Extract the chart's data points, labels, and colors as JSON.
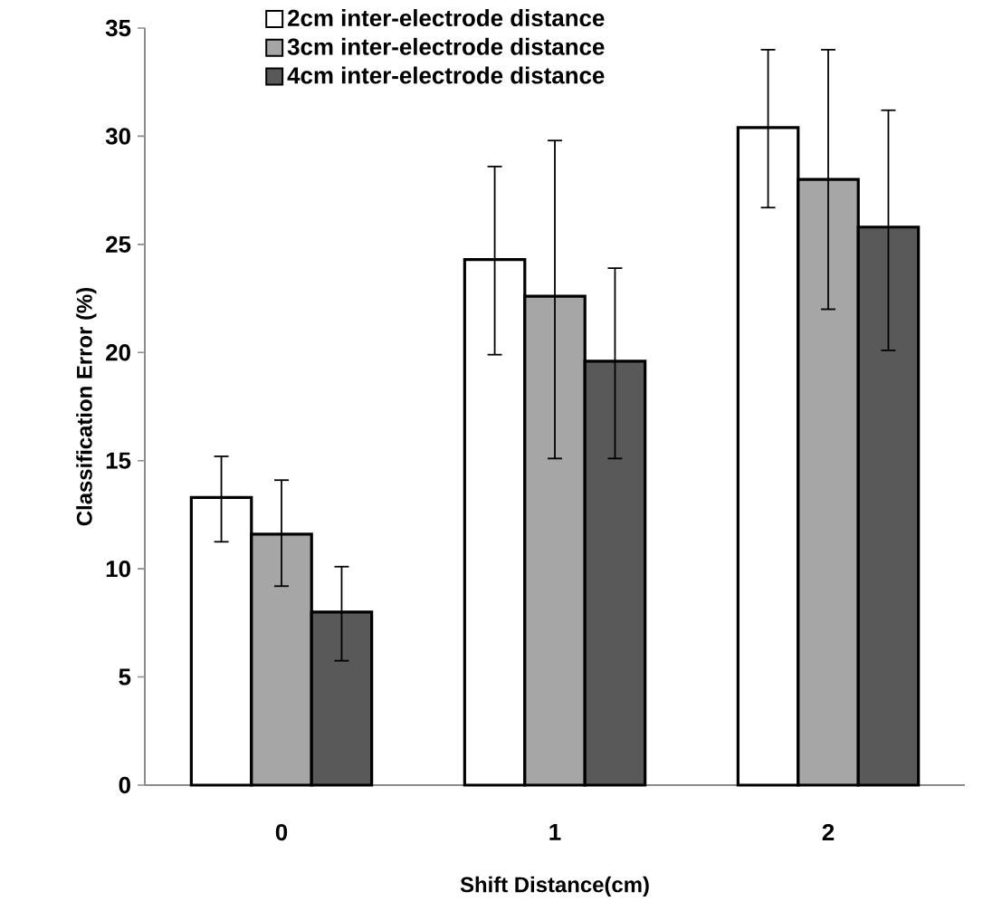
{
  "chart_data": {
    "type": "bar",
    "xlabel": "Shift Distance(cm)",
    "ylabel": "Classification Error (%)",
    "categories": [
      "0",
      "1",
      "2"
    ],
    "series": [
      {
        "name": "2cm inter-electrode distance",
        "color": "#ffffff",
        "values": [
          13.3,
          24.3,
          30.4
        ],
        "errors": [
          [
            11.25,
            15.2
          ],
          [
            19.9,
            28.6
          ],
          [
            26.7,
            34.0
          ]
        ]
      },
      {
        "name": "3cm inter-electrode distance",
        "color": "#a6a6a6",
        "values": [
          11.6,
          22.6,
          28.0
        ],
        "errors": [
          [
            9.2,
            14.1
          ],
          [
            15.1,
            29.8
          ],
          [
            22.0,
            34.0
          ]
        ]
      },
      {
        "name": "4cm inter-electrode distance",
        "color": "#595959",
        "values": [
          8.0,
          19.6,
          25.8
        ],
        "errors": [
          [
            5.75,
            10.1
          ],
          [
            15.1,
            23.9
          ],
          [
            20.1,
            31.2
          ]
        ]
      }
    ],
    "ylim": [
      0,
      35
    ],
    "yticks": [
      0,
      5,
      10,
      15,
      20,
      25,
      30,
      35
    ],
    "grid": false,
    "legend": "top"
  }
}
